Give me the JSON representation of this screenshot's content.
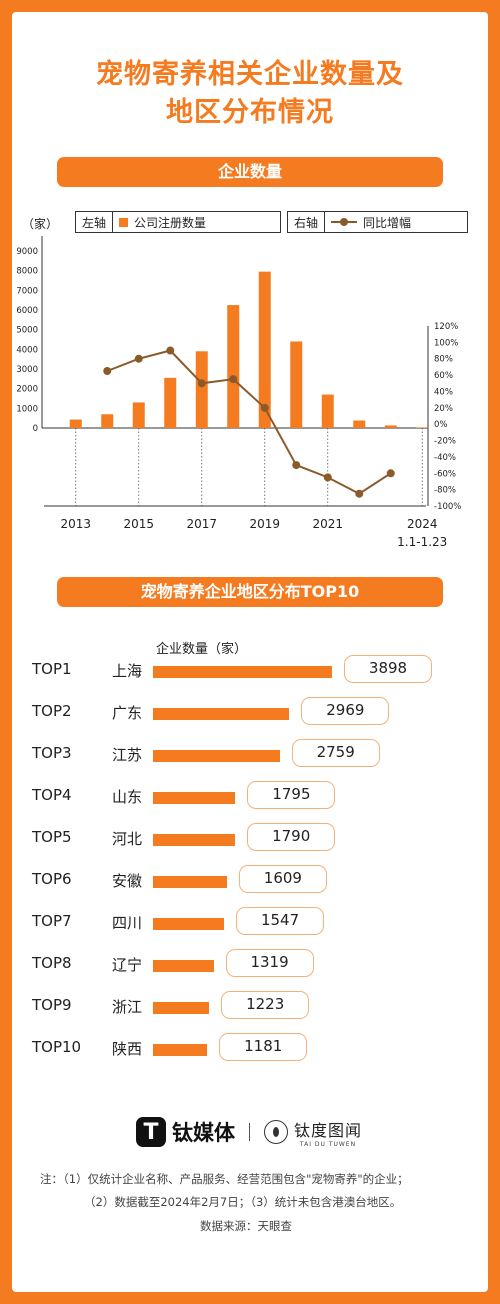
{
  "title": {
    "line1": "宠物寄养相关企业数量及",
    "line2": "地区分布情况"
  },
  "section1": {
    "label": "企业数量"
  },
  "section2": {
    "label": "宠物寄养企业地区分布TOP10"
  },
  "legend": {
    "left_key": "左轴",
    "left_item": "公司注册数量",
    "right_key": "右轴",
    "right_item": "同比增幅"
  },
  "unit_label": "（家）",
  "colors": {
    "accent": "#f47b20",
    "line": "#8b5a2b",
    "box_border": "#f4b27a"
  },
  "chart_data": [
    {
      "type": "bar+line",
      "categories": [
        "2013",
        "2014",
        "2015",
        "2016",
        "2017",
        "2018",
        "2019",
        "2020",
        "2021",
        "2022",
        "2023",
        "2024 1.1-1.23"
      ],
      "x_tick_labels": [
        "2013",
        "2015",
        "2017",
        "2019",
        "2021",
        "2024",
        "1.1-1.23"
      ],
      "series": [
        {
          "name": "公司注册数量",
          "axis": "left",
          "type": "bar",
          "values": [
            430,
            700,
            1300,
            2550,
            3900,
            6250,
            7950,
            4400,
            1700,
            380,
            130,
            30
          ]
        },
        {
          "name": "同比增幅",
          "axis": "right",
          "type": "line",
          "values": [
            null,
            65,
            80,
            90,
            50,
            55,
            20,
            -50,
            -65,
            -85,
            -60,
            null
          ]
        }
      ],
      "y_left": {
        "ticks": [
          "9000",
          "8000",
          "7000",
          "6000",
          "5000",
          "4000",
          "3000",
          "2000",
          "1000",
          "0"
        ],
        "ylim": [
          0,
          9000
        ]
      },
      "y_right": {
        "ticks": [
          "120%",
          "100%",
          "80%",
          "60%",
          "40%",
          "20%",
          "0%",
          "-20%",
          "-40%",
          "-60%",
          "-80%",
          "-100%"
        ],
        "ylim": [
          -100,
          120
        ]
      }
    },
    {
      "type": "bar",
      "column_header": "企业数量（家）",
      "ranks": [
        "TOP1",
        "TOP2",
        "TOP3",
        "TOP4",
        "TOP5",
        "TOP6",
        "TOP7",
        "TOP8",
        "TOP9",
        "TOP10"
      ],
      "categories": [
        "上海",
        "广东",
        "江苏",
        "山东",
        "河北",
        "安徽",
        "四川",
        "辽宁",
        "浙江",
        "陕西"
      ],
      "values": [
        3898,
        2969,
        2759,
        1795,
        1790,
        1609,
        1547,
        1319,
        1223,
        1181
      ]
    }
  ],
  "notes": {
    "line1": "注：（1）仅统计企业名称、产品服务、经营范围包含\"宠物寄养\"的企业；",
    "line2": "（2）数据截至2024年2月7日；（3）统计未包含港澳台地区。",
    "line3": "数据来源：天眼查"
  },
  "logos": {
    "brand1": "钛媒体",
    "brand1_glyph": "T",
    "brand2": "钛度图闻",
    "brand2_sub": "TAI DU TUWEN"
  },
  "watermark": "钛媒体"
}
